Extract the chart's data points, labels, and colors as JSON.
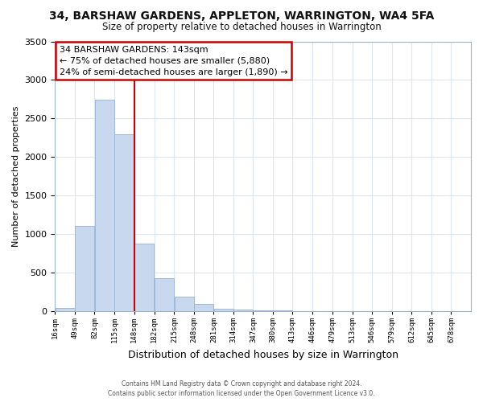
{
  "title1": "34, BARSHAW GARDENS, APPLETON, WARRINGTON, WA4 5FA",
  "title2": "Size of property relative to detached houses in Warrington",
  "xlabel": "Distribution of detached houses by size in Warrington",
  "ylabel": "Number of detached properties",
  "bar_left_edges": [
    16,
    49,
    82,
    115,
    148,
    182,
    215,
    248,
    281,
    314,
    347,
    380,
    413,
    446,
    479,
    513,
    546,
    579,
    612,
    645
  ],
  "bar_widths": [
    33,
    33,
    33,
    33,
    34,
    33,
    33,
    33,
    33,
    33,
    33,
    33,
    33,
    33,
    33,
    33,
    33,
    33,
    33,
    33
  ],
  "bar_heights": [
    40,
    1110,
    2740,
    2300,
    880,
    430,
    185,
    95,
    35,
    25,
    10,
    5,
    0,
    0,
    0,
    0,
    0,
    0,
    0,
    0
  ],
  "bar_color": "#c8d9ef",
  "bar_edge_color": "#a0b8d8",
  "tick_labels": [
    "16sqm",
    "49sqm",
    "82sqm",
    "115sqm",
    "148sqm",
    "182sqm",
    "215sqm",
    "248sqm",
    "281sqm",
    "314sqm",
    "347sqm",
    "380sqm",
    "413sqm",
    "446sqm",
    "479sqm",
    "513sqm",
    "546sqm",
    "579sqm",
    "612sqm",
    "645sqm",
    "678sqm"
  ],
  "ylim": [
    0,
    3500
  ],
  "yticks": [
    0,
    500,
    1000,
    1500,
    2000,
    2500,
    3000,
    3500
  ],
  "property_line_x": 148,
  "property_line_color": "#cc0000",
  "annotation_title": "34 BARSHAW GARDENS: 143sqm",
  "annotation_line1": "← 75% of detached houses are smaller (5,880)",
  "annotation_line2": "24% of semi-detached houses are larger (1,890) →",
  "annotation_box_color": "#ffffff",
  "annotation_box_edge_color": "#cc0000",
  "footer1": "Contains HM Land Registry data © Crown copyright and database right 2024.",
  "footer2": "Contains public sector information licensed under the Open Government Licence v3.0.",
  "bg_color": "#ffffff",
  "grid_color": "#dce6f0"
}
